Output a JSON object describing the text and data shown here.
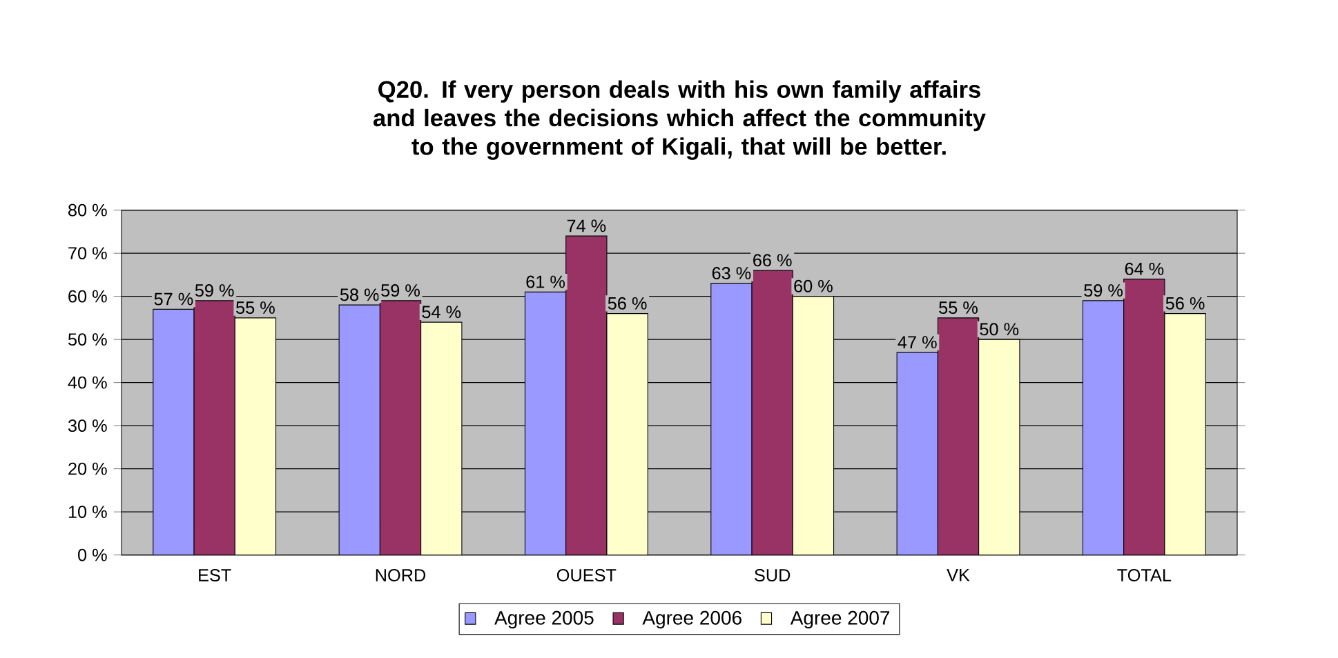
{
  "chart_data": {
    "type": "bar",
    "title": "Q20. If very person deals with his own family affairs and leaves the decisions which affect the community to the government of Kigali, that will be better.",
    "categories": [
      "EST",
      "NORD",
      "OUEST",
      "SUD",
      "VK",
      "TOTAL"
    ],
    "series": [
      {
        "name": "Agree 2005",
        "color": "#9999ff",
        "values": [
          57,
          58,
          61,
          63,
          47,
          59
        ],
        "value_labels": [
          "57 %",
          "58 %",
          "61 %",
          "63 %",
          "47 %",
          "59 %"
        ]
      },
      {
        "name": "Agree 2006",
        "color": "#993366",
        "values": [
          59,
          59,
          74,
          66,
          55,
          64
        ],
        "value_labels": [
          "59 %",
          "59 %",
          "74 %",
          "66 %",
          "55 %",
          "64 %"
        ]
      },
      {
        "name": "Agree 2007",
        "color": "#ffffcc",
        "values": [
          55,
          54,
          56,
          60,
          50,
          56
        ],
        "value_labels": [
          "55 %",
          "54 %",
          "56 %",
          "60 %",
          "50 %",
          "56 %"
        ]
      }
    ],
    "ylim": [
      0,
      80
    ],
    "yticks": [
      {
        "value": 0,
        "label": "0 %"
      },
      {
        "value": 10,
        "label": "10 %"
      },
      {
        "value": 20,
        "label": "20 %"
      },
      {
        "value": 30,
        "label": "30 %"
      },
      {
        "value": 40,
        "label": "40 %"
      },
      {
        "value": 50,
        "label": "50 %"
      },
      {
        "value": 60,
        "label": "60 %"
      },
      {
        "value": 70,
        "label": "70 %"
      },
      {
        "value": 80,
        "label": "80 %"
      }
    ],
    "grid": "y",
    "legend": "bottom"
  }
}
